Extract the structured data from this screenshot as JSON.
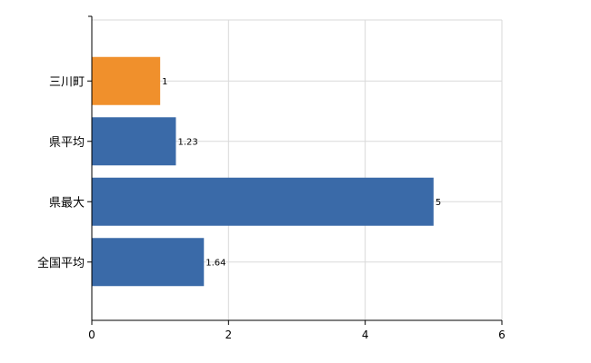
{
  "chart_data": {
    "type": "bar",
    "orientation": "horizontal",
    "categories": [
      "三川町",
      "県平均",
      "県最大",
      "全国平均"
    ],
    "values": [
      1,
      1.23,
      5,
      1.64
    ],
    "data_labels": [
      "1",
      "1.23",
      "5",
      "1.64"
    ],
    "xlim": [
      0,
      6
    ],
    "x_ticks": [
      "0",
      "2",
      "4",
      "6"
    ],
    "grid": true,
    "colors": [
      "#f0902c",
      "#3a6aa8",
      "#3a6aa8",
      "#3a6aa8"
    ]
  }
}
